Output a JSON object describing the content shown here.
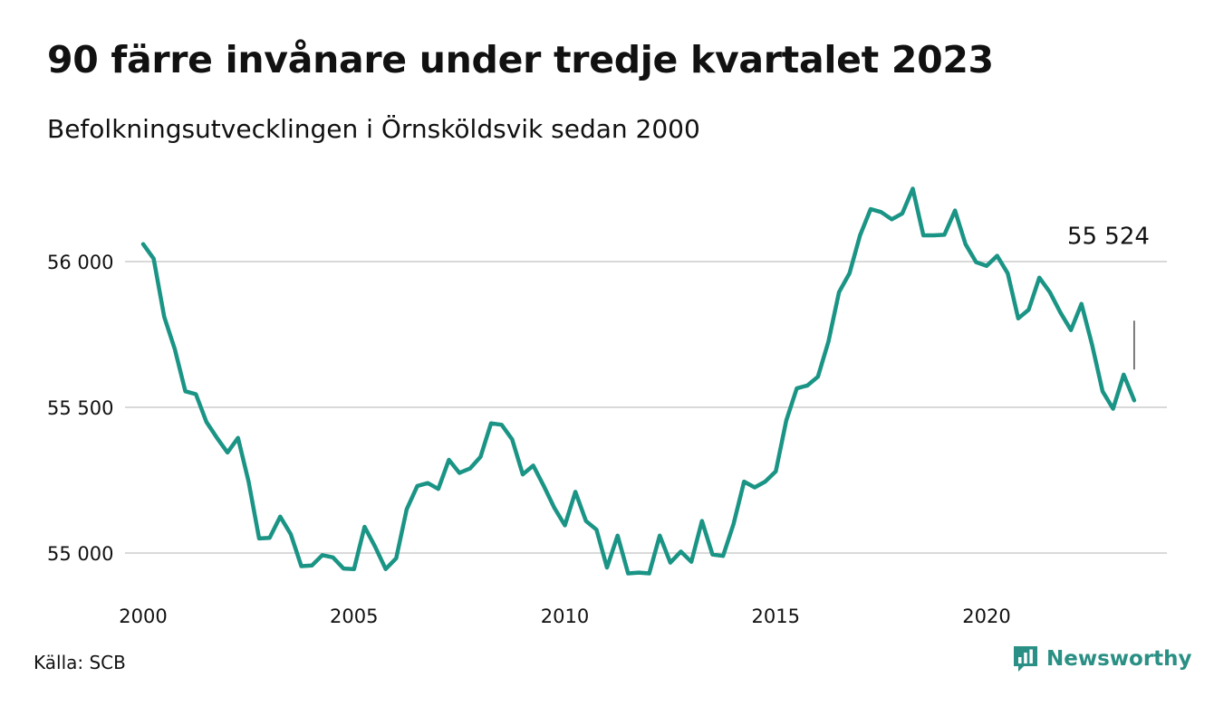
{
  "header": {
    "title": "90 färre invånare under tredje kvartalet 2023",
    "subtitle": "Befolkningsutvecklingen i Örnsköldsvik sedan 2000"
  },
  "footer": {
    "source": "Källa: SCB",
    "brand": "Newsworthy",
    "brand_icon": "bar-chart-speech-bubble-icon"
  },
  "colors": {
    "line": "#1a9485",
    "grid": "#d9d9d9",
    "text": "#111111",
    "brand": "#2a8f84"
  },
  "chart_data": {
    "type": "line",
    "title": "90 färre invånare under tredje kvartalet 2023",
    "subtitle": "Befolkningsutvecklingen i Örnsköldsvik sedan 2000",
    "xlabel": "",
    "ylabel": "",
    "xlim": [
      2000,
      2024
    ],
    "ylim": [
      54900,
      56300
    ],
    "grid": true,
    "x_ticks": [
      2000,
      2005,
      2010,
      2015,
      2020
    ],
    "y_ticks": [
      55000,
      55500,
      56000
    ],
    "y_tick_labels": [
      "55 000",
      "55 500",
      "56 000"
    ],
    "annotation": {
      "text": "55 524",
      "value": 55524
    },
    "series": [
      {
        "x": [
          2000.0,
          2000.25,
          2000.5,
          2000.75,
          2001.0,
          2001.25,
          2001.5,
          2001.75,
          2002.0,
          2002.25,
          2002.5,
          2002.75,
          2003.0,
          2003.25,
          2003.5,
          2003.75,
          2004.0,
          2004.25,
          2004.5,
          2004.75,
          2005.0,
          2005.25,
          2005.5,
          2005.75,
          2006.0,
          2006.25,
          2006.5,
          2006.75,
          2007.0,
          2007.25,
          2007.5,
          2007.75,
          2008.0,
          2008.25,
          2008.5,
          2008.75,
          2009.0,
          2009.25,
          2009.5,
          2009.75,
          2010.0,
          2010.25,
          2010.5,
          2010.75,
          2011.0,
          2011.25,
          2011.5,
          2011.75,
          2012.0,
          2012.25,
          2012.5,
          2012.75,
          2013.0,
          2013.25,
          2013.5,
          2013.75,
          2014.0,
          2014.25,
          2014.5,
          2014.75,
          2015.0,
          2015.25,
          2015.5,
          2015.75,
          2016.0,
          2016.25,
          2016.5,
          2016.75,
          2017.0,
          2017.25,
          2017.5,
          2017.75,
          2018.0,
          2018.25,
          2018.5,
          2018.75,
          2019.0,
          2019.25,
          2019.5,
          2019.75,
          2020.0,
          2020.25,
          2020.5,
          2020.75,
          2021.0,
          2021.25,
          2021.5,
          2021.75,
          2022.0,
          2022.25,
          2022.5,
          2022.75,
          2023.0,
          2023.25,
          2023.5
        ],
        "values": [
          56060,
          56010,
          55810,
          55700,
          55555,
          55545,
          55450,
          55395,
          55345,
          55395,
          55245,
          55050,
          55052,
          55125,
          55065,
          54955,
          54957,
          54993,
          54985,
          54947,
          54945,
          55090,
          55022,
          54945,
          54982,
          55150,
          55230,
          55240,
          55220,
          55320,
          55275,
          55290,
          55330,
          55445,
          55440,
          55390,
          55270,
          55300,
          55230,
          55155,
          55095,
          55210,
          55110,
          55080,
          54950,
          55060,
          54930,
          54933,
          54930,
          55060,
          54967,
          55005,
          54970,
          55110,
          54995,
          54990,
          55100,
          55245,
          55225,
          55245,
          55280,
          55455,
          55565,
          55575,
          55605,
          55725,
          55895,
          55960,
          56090,
          56180,
          56170,
          56145,
          56165,
          56250,
          56090,
          56090,
          56092,
          56175,
          56060,
          55998,
          55985,
          56020,
          55960,
          55805,
          55835,
          55945,
          55895,
          55825,
          55765,
          55855,
          55715,
          55555,
          55495,
          55612,
          55524
        ]
      }
    ]
  }
}
